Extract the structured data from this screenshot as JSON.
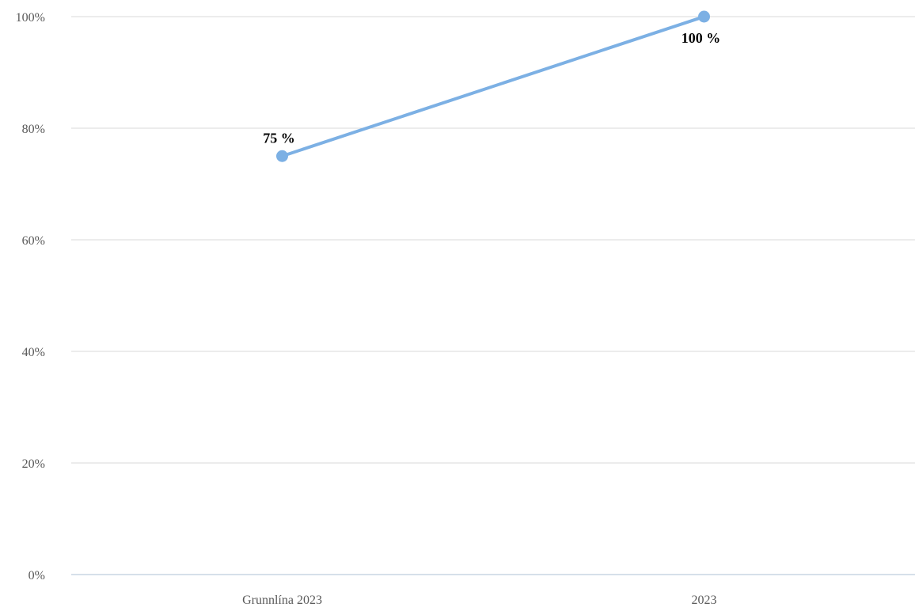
{
  "chart_data": {
    "type": "line",
    "categories": [
      "Grunnlína 2023",
      "2023"
    ],
    "series": [
      {
        "values": [
          75,
          100
        ],
        "data_labels": [
          "75 %",
          "100 %"
        ]
      }
    ],
    "y_tick_labels": [
      "0%",
      "20%",
      "40%",
      "60%",
      "80%",
      "100%"
    ],
    "y_ticks": [
      0,
      20,
      40,
      60,
      80,
      100
    ],
    "ylim": [
      0,
      100
    ],
    "grid": true,
    "legend": "none",
    "colors": {
      "series": "#7cb0e4",
      "grid": "#d9d9d9",
      "axis": "#c9d6e3",
      "tick_text": "#595959",
      "label_text": "#000000"
    }
  }
}
